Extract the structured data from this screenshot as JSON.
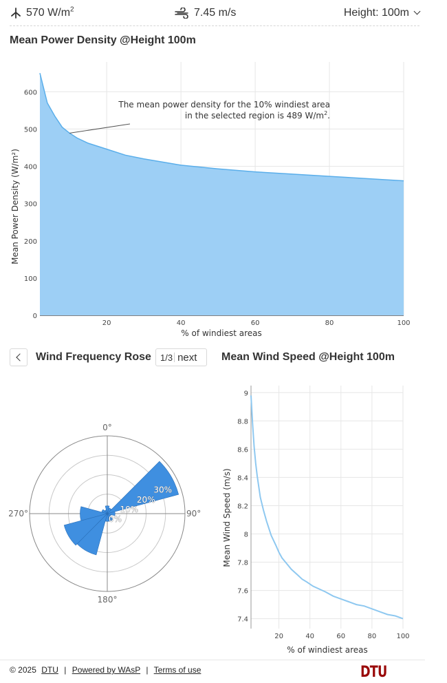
{
  "header": {
    "power_value": "570 W/m",
    "power_sup": "2",
    "speed_value": "7.45 m/s",
    "height_label": "Height: 100m"
  },
  "power_section": {
    "title": "Mean Power Density @Height 100m",
    "annotation_line1": "The mean power density for the 10% windiest area",
    "annotation_line2": "in the selected region is 489 W/m",
    "annotation_sup": "2",
    "annotation_end": "."
  },
  "rose_section": {
    "title": "Wind Frequency Rose",
    "pager_text": "1/3",
    "next_label": "next"
  },
  "speed_section": {
    "title": "Mean Wind Speed @Height 100m"
  },
  "footer": {
    "copyright": "© 2025",
    "dtu_link": "DTU",
    "wasp_link": "Powered by WAsP",
    "terms_link": "Terms of use",
    "logo": "DTU"
  },
  "colors": {
    "area_fill": "#9dcff5",
    "area_line": "#5aaeea",
    "rose_fill": "#3f8fe0",
    "speed_line": "#8ec8f0",
    "grid": "#e6e6e6"
  },
  "chart_data": [
    {
      "type": "area",
      "xlabel": "% of windiest areas",
      "ylabel": "Mean Power Density (W/m²)",
      "xlim": [
        2,
        100
      ],
      "ylim": [
        0,
        680
      ],
      "xticks": [
        20,
        40,
        60,
        80,
        100
      ],
      "yticks": [
        0,
        100,
        200,
        300,
        400,
        500,
        600
      ],
      "grid": true,
      "x": [
        2,
        4,
        6,
        8,
        10,
        12,
        15,
        20,
        25,
        30,
        40,
        50,
        60,
        70,
        80,
        90,
        100
      ],
      "y": [
        650,
        570,
        535,
        505,
        489,
        476,
        462,
        446,
        430,
        420,
        403,
        393,
        385,
        379,
        373,
        367,
        361
      ]
    },
    {
      "type": "polar-bar",
      "direction_labels": [
        "0°",
        "90°",
        "180°",
        "270°"
      ],
      "ring_labels": [
        "0%",
        "10%",
        "20%",
        "30%"
      ],
      "rmax": 40,
      "sectors": [
        {
          "direction": 0,
          "value": 4
        },
        {
          "direction": 30,
          "value": 3
        },
        {
          "direction": 60,
          "value": 38
        },
        {
          "direction": 90,
          "value": 4
        },
        {
          "direction": 120,
          "value": 2
        },
        {
          "direction": 150,
          "value": 4
        },
        {
          "direction": 180,
          "value": 4
        },
        {
          "direction": 210,
          "value": 22
        },
        {
          "direction": 240,
          "value": 23
        },
        {
          "direction": 270,
          "value": 14
        },
        {
          "direction": 300,
          "value": 3
        },
        {
          "direction": 330,
          "value": 2
        }
      ]
    },
    {
      "type": "line",
      "xlabel": "% of windiest areas",
      "ylabel": "Mean Wind Speed (m/s)",
      "xlim": [
        2,
        100
      ],
      "ylim": [
        7.33,
        9.05
      ],
      "xticks": [
        20,
        40,
        60,
        80,
        100
      ],
      "yticks": [
        7.4,
        7.6,
        7.8,
        8,
        8.2,
        8.4,
        8.6,
        8.8,
        9
      ],
      "grid": true,
      "x": [
        2,
        3,
        4,
        5,
        6,
        8,
        10,
        12,
        15,
        18,
        20,
        22,
        25,
        28,
        32,
        35,
        38,
        42,
        46,
        50,
        55,
        60,
        65,
        70,
        75,
        80,
        85,
        90,
        95,
        100
      ],
      "y": [
        8.98,
        8.78,
        8.62,
        8.5,
        8.41,
        8.26,
        8.17,
        8.09,
        7.99,
        7.92,
        7.87,
        7.83,
        7.79,
        7.75,
        7.71,
        7.68,
        7.66,
        7.63,
        7.61,
        7.59,
        7.56,
        7.54,
        7.52,
        7.5,
        7.49,
        7.47,
        7.45,
        7.43,
        7.42,
        7.4
      ]
    }
  ]
}
